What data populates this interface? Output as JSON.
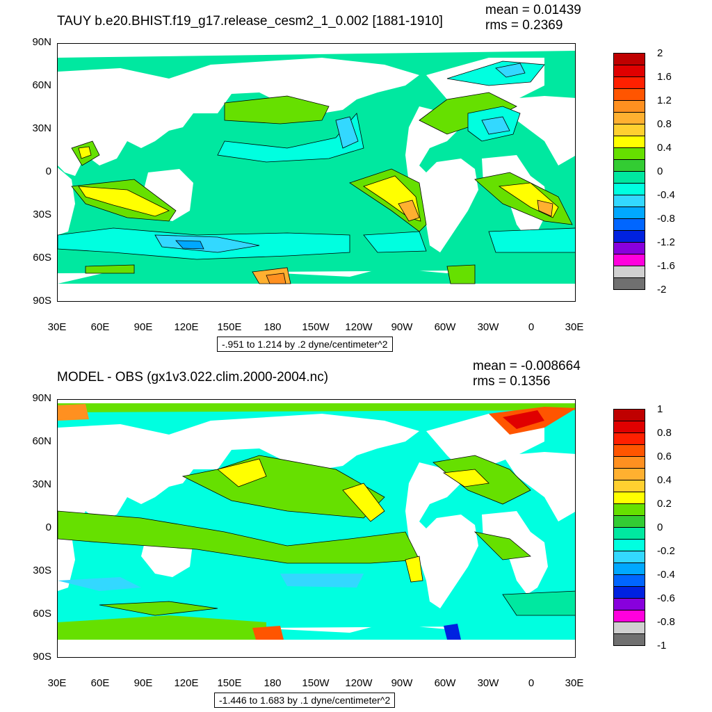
{
  "panels": [
    {
      "title": "TAUY b.e20.BHIST.f19_g17.release_cesm2_1_0.002 [1881-1910]",
      "mean": "mean = 0.01439",
      "rms": "rms = 0.2369",
      "info": "-.951 to 1.214 by .2 dyne/centimeter^2",
      "colorbar_labels": [
        "2",
        "1.6",
        "1.2",
        "0.8",
        "0.4",
        "0",
        "-0.4",
        "-0.8",
        "-1.2",
        "-1.6",
        "-2"
      ]
    },
    {
      "title": "MODEL - OBS (gx1v3.022.clim.2000-2004.nc)",
      "mean": "mean = -0.008664",
      "rms": "rms = 0.1356",
      "info": "-1.446 to 1.683 by .1 dyne/centimeter^2",
      "colorbar_labels": [
        "1",
        "0.8",
        "0.6",
        "0.4",
        "0.2",
        "0",
        "-0.2",
        "-0.4",
        "-0.6",
        "-0.8",
        "-1"
      ]
    }
  ],
  "lat_labels": [
    "90N",
    "60N",
    "30N",
    "0",
    "30S",
    "60S",
    "90S"
  ],
  "lon_labels": [
    "30E",
    "60E",
    "90E",
    "120E",
    "150E",
    "180",
    "150W",
    "120W",
    "90W",
    "60W",
    "30W",
    "0",
    "30E"
  ],
  "colors": {
    "palette": [
      "#bf0000",
      "#e00000",
      "#ff2000",
      "#ff5500",
      "#ff9020",
      "#ffb030",
      "#ffd030",
      "#ffff00",
      "#66e000",
      "#33cc33",
      "#00e8a0",
      "#00ffe0",
      "#33d8ff",
      "#00a8ff",
      "#0066ff",
      "#0022e0",
      "#8800dd",
      "#ff00dd",
      "#d0d0d0",
      "#707070"
    ],
    "land": "#ffffff"
  }
}
